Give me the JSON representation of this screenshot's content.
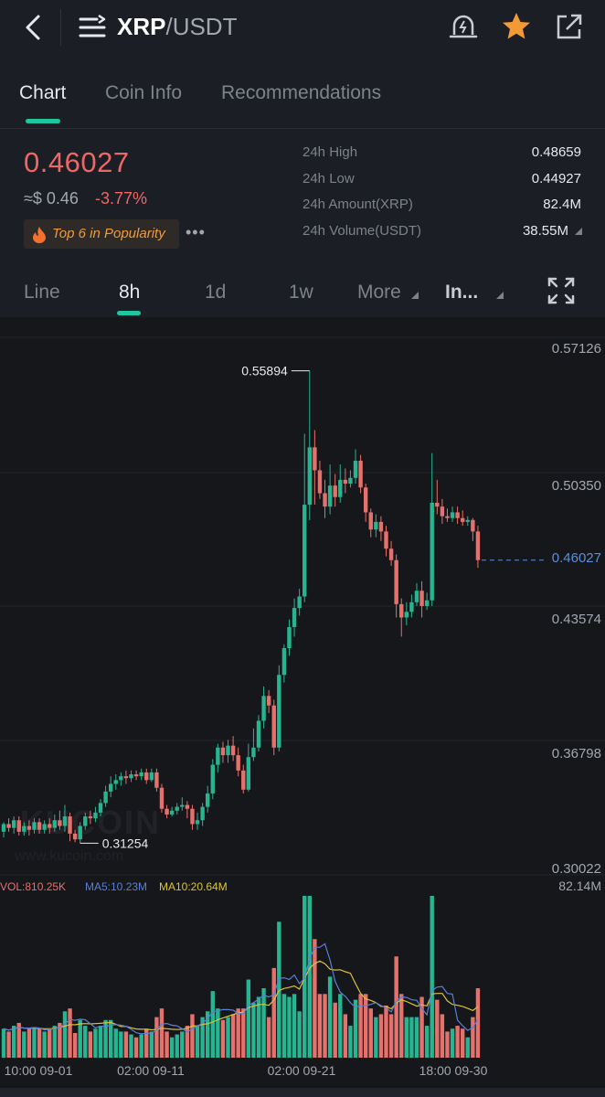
{
  "header": {
    "pair_base": "XRP",
    "pair_quote": "/USDT",
    "back_icon": "chevron-left-icon",
    "menu_icon": "menu-icon",
    "alert_icon": "alert-bell-icon",
    "favorite_icon": "star-icon",
    "share_icon": "share-icon"
  },
  "tabs": [
    {
      "label": "Chart",
      "active": true
    },
    {
      "label": "Coin Info",
      "active": false
    },
    {
      "label": "Recommendations",
      "active": false
    }
  ],
  "ticker": {
    "price": "0.46027",
    "approx_prefix": "≈",
    "approx_value": "$ 0.46",
    "change": "-3.77%",
    "badge": "Top 6 in Popularity",
    "more": "•••"
  },
  "stats": [
    {
      "label": "24h High",
      "value": "0.48659"
    },
    {
      "label": "24h Low",
      "value": "0.44927"
    },
    {
      "label": "24h Amount(XRP)",
      "value": "82.4M"
    },
    {
      "label": "24h Volume(USDT)",
      "value": "38.55M"
    }
  ],
  "intervals": [
    {
      "label": "Line",
      "active": false
    },
    {
      "label": "8h",
      "active": true
    },
    {
      "label": "1d",
      "active": false
    },
    {
      "label": "1w",
      "active": false
    },
    {
      "label": "More",
      "active": false
    },
    {
      "label": "In...",
      "active": false
    }
  ],
  "chart_data": {
    "type": "candlestick",
    "price_axis_labels": [
      "0.57126",
      "0.50350",
      "0.46027",
      "0.43574",
      "0.36798",
      "0.30022"
    ],
    "ylim": [
      0.30022,
      0.57126
    ],
    "current_price": "0.46027",
    "high_marker": "0.55894",
    "low_marker": "0.31254",
    "x_tick_labels": [
      "10:00 09-01",
      "02:00 09-11",
      "02:00 09-21",
      "18:00 09-30"
    ],
    "watermark": "KUCOIN",
    "watermark_url": "www.kucoin.com",
    "colors": {
      "up": "#27b591",
      "down": "#e5716d",
      "ma5": "#5a7fd6",
      "ma10": "#d9c23a",
      "last_price": "#5b8fd9"
    },
    "candles": [
      [
        0.318,
        0.322,
        0.323,
        0.315
      ],
      [
        0.322,
        0.32,
        0.325,
        0.318
      ],
      [
        0.32,
        0.324,
        0.326,
        0.317
      ],
      [
        0.324,
        0.318,
        0.326,
        0.316
      ],
      [
        0.318,
        0.321,
        0.323,
        0.316
      ],
      [
        0.321,
        0.319,
        0.324,
        0.316
      ],
      [
        0.319,
        0.323,
        0.325,
        0.317
      ],
      [
        0.323,
        0.319,
        0.325,
        0.317
      ],
      [
        0.319,
        0.322,
        0.324,
        0.317
      ],
      [
        0.322,
        0.32,
        0.325,
        0.317
      ],
      [
        0.32,
        0.324,
        0.327,
        0.318
      ],
      [
        0.324,
        0.321,
        0.329,
        0.319
      ],
      [
        0.321,
        0.326,
        0.332,
        0.318
      ],
      [
        0.326,
        0.317,
        0.328,
        0.313
      ],
      [
        0.317,
        0.314,
        0.319,
        0.3125
      ],
      [
        0.314,
        0.321,
        0.323,
        0.312
      ],
      [
        0.321,
        0.326,
        0.328,
        0.319
      ],
      [
        0.326,
        0.325,
        0.329,
        0.322
      ],
      [
        0.325,
        0.328,
        0.331,
        0.323
      ],
      [
        0.328,
        0.333,
        0.335,
        0.326
      ],
      [
        0.333,
        0.339,
        0.342,
        0.331
      ],
      [
        0.339,
        0.343,
        0.347,
        0.336
      ],
      [
        0.343,
        0.345,
        0.348,
        0.34
      ],
      [
        0.345,
        0.347,
        0.349,
        0.342
      ],
      [
        0.347,
        0.346,
        0.35,
        0.343
      ],
      [
        0.346,
        0.348,
        0.35,
        0.344
      ],
      [
        0.348,
        0.347,
        0.35,
        0.345
      ],
      [
        0.347,
        0.349,
        0.351,
        0.345
      ],
      [
        0.349,
        0.345,
        0.351,
        0.343
      ],
      [
        0.345,
        0.349,
        0.351,
        0.344
      ],
      [
        0.349,
        0.341,
        0.351,
        0.339
      ],
      [
        0.341,
        0.33,
        0.343,
        0.328
      ],
      [
        0.33,
        0.327,
        0.332,
        0.325
      ],
      [
        0.327,
        0.329,
        0.331,
        0.326
      ],
      [
        0.329,
        0.331,
        0.333,
        0.327
      ],
      [
        0.331,
        0.332,
        0.336,
        0.329
      ],
      [
        0.332,
        0.33,
        0.334,
        0.325
      ],
      [
        0.33,
        0.322,
        0.332,
        0.319
      ],
      [
        0.322,
        0.324,
        0.328,
        0.319
      ],
      [
        0.324,
        0.331,
        0.333,
        0.321
      ],
      [
        0.331,
        0.338,
        0.342,
        0.328
      ],
      [
        0.338,
        0.353,
        0.356,
        0.335
      ],
      [
        0.353,
        0.362,
        0.364,
        0.349
      ],
      [
        0.362,
        0.358,
        0.365,
        0.354
      ],
      [
        0.358,
        0.363,
        0.366,
        0.354
      ],
      [
        0.363,
        0.358,
        0.368,
        0.355
      ],
      [
        0.358,
        0.35,
        0.362,
        0.347
      ],
      [
        0.35,
        0.34,
        0.353,
        0.338
      ],
      [
        0.34,
        0.357,
        0.364,
        0.339
      ],
      [
        0.357,
        0.362,
        0.372,
        0.355
      ],
      [
        0.362,
        0.376,
        0.379,
        0.36
      ],
      [
        0.376,
        0.389,
        0.394,
        0.372
      ],
      [
        0.389,
        0.384,
        0.392,
        0.38
      ],
      [
        0.384,
        0.362,
        0.387,
        0.358
      ],
      [
        0.362,
        0.4,
        0.405,
        0.36
      ],
      [
        0.4,
        0.414,
        0.416,
        0.396
      ],
      [
        0.414,
        0.425,
        0.429,
        0.41
      ],
      [
        0.425,
        0.435,
        0.44,
        0.42
      ],
      [
        0.435,
        0.441,
        0.445,
        0.431
      ],
      [
        0.441,
        0.489,
        0.526,
        0.438
      ],
      [
        0.489,
        0.519,
        0.559,
        0.481
      ],
      [
        0.519,
        0.507,
        0.528,
        0.489
      ],
      [
        0.507,
        0.495,
        0.512,
        0.492
      ],
      [
        0.495,
        0.488,
        0.502,
        0.482
      ],
      [
        0.488,
        0.499,
        0.51,
        0.484
      ],
      [
        0.499,
        0.493,
        0.505,
        0.488
      ],
      [
        0.493,
        0.502,
        0.51,
        0.49
      ],
      [
        0.502,
        0.5,
        0.508,
        0.495
      ],
      [
        0.5,
        0.503,
        0.507,
        0.498
      ],
      [
        0.503,
        0.512,
        0.518,
        0.5
      ],
      [
        0.512,
        0.498,
        0.515,
        0.495
      ],
      [
        0.498,
        0.485,
        0.5,
        0.48
      ],
      [
        0.485,
        0.476,
        0.487,
        0.472
      ],
      [
        0.476,
        0.48,
        0.484,
        0.472
      ],
      [
        0.48,
        0.475,
        0.483,
        0.47
      ],
      [
        0.475,
        0.466,
        0.478,
        0.462
      ],
      [
        0.466,
        0.46,
        0.47,
        0.457
      ],
      [
        0.46,
        0.437,
        0.463,
        0.43
      ],
      [
        0.437,
        0.43,
        0.44,
        0.42
      ],
      [
        0.43,
        0.433,
        0.438,
        0.426
      ],
      [
        0.433,
        0.438,
        0.442,
        0.43
      ],
      [
        0.438,
        0.444,
        0.448,
        0.436
      ],
      [
        0.444,
        0.436,
        0.449,
        0.43
      ],
      [
        0.436,
        0.439,
        0.443,
        0.434
      ],
      [
        0.439,
        0.49,
        0.516,
        0.436
      ],
      [
        0.49,
        0.488,
        0.502,
        0.484
      ],
      [
        0.488,
        0.483,
        0.492,
        0.479
      ],
      [
        0.483,
        0.482,
        0.487,
        0.48
      ],
      [
        0.482,
        0.485,
        0.488,
        0.48
      ],
      [
        0.485,
        0.482,
        0.488,
        0.479
      ],
      [
        0.482,
        0.48,
        0.486,
        0.478
      ],
      [
        0.48,
        0.481,
        0.483,
        0.478
      ],
      [
        0.481,
        0.475,
        0.482,
        0.47
      ],
      [
        0.475,
        0.46,
        0.478,
        0.456
      ]
    ],
    "volume_panel": {
      "vol_label": "VOL:810.25K",
      "ma5_label": "MA5:10.23M",
      "ma10_label": "MA10:20.64M",
      "max_label": "82.14M",
      "max_value": 82.14,
      "unit": "M"
    }
  }
}
